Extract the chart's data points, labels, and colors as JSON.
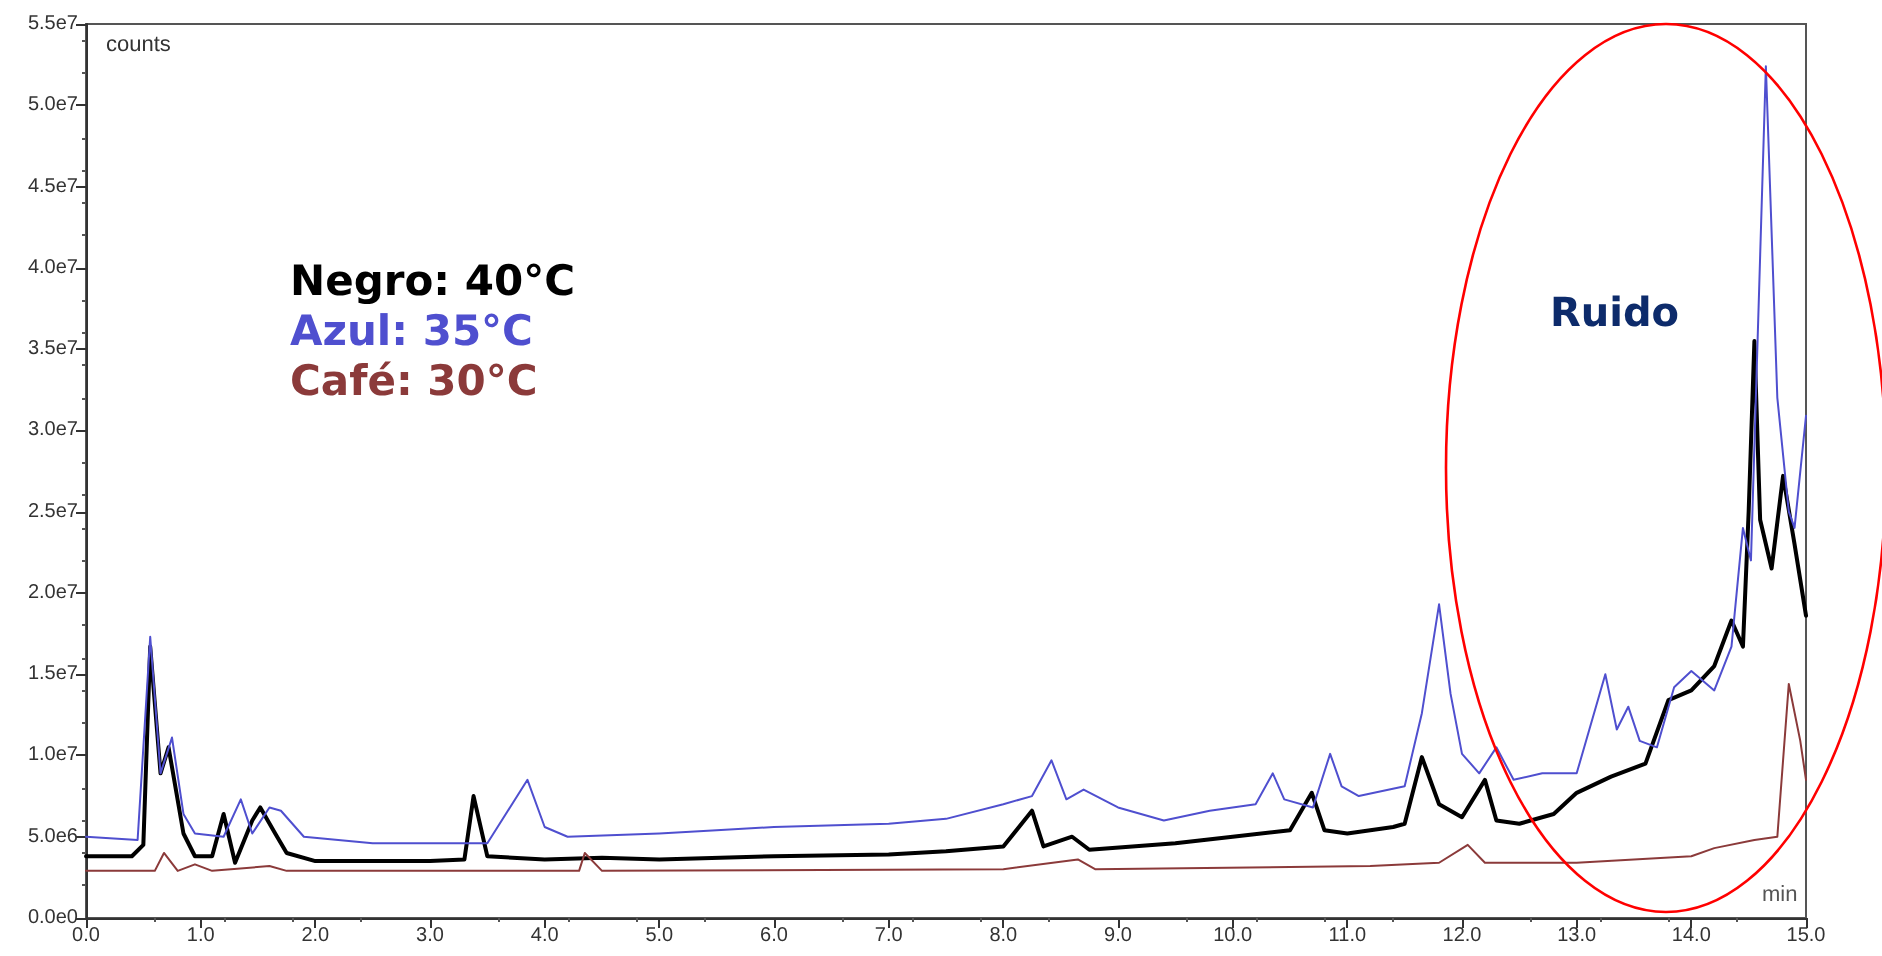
{
  "chart_data": {
    "type": "line",
    "xlabel": "min",
    "ylabel": "counts",
    "annotations": [
      "Ruido"
    ],
    "legend": "top left",
    "grid": false,
    "marker": "none",
    "line_style": "solid",
    "xlim": [
      0,
      15
    ],
    "xticks": [
      {
        "value": 0,
        "label": "0.0"
      },
      {
        "value": 1,
        "label": "1.0"
      },
      {
        "value": 2,
        "label": "2.0"
      },
      {
        "value": 3,
        "label": "3.0"
      },
      {
        "value": 4,
        "label": "4.0"
      },
      {
        "value": 5,
        "label": "5.0"
      },
      {
        "value": 6,
        "label": "6.0"
      },
      {
        "value": 7,
        "label": "7.0"
      },
      {
        "value": 8,
        "label": "8.0"
      },
      {
        "value": 9,
        "label": "9.0"
      },
      {
        "value": 10,
        "label": "10.0"
      },
      {
        "value": 11,
        "label": "11.0"
      },
      {
        "value": 12,
        "label": "12.0"
      },
      {
        "value": 13,
        "label": "13.0"
      },
      {
        "value": 14,
        "label": "14.0"
      },
      {
        "value": 15,
        "label": "15.0"
      }
    ],
    "ylim": [
      0,
      55000000
    ],
    "yticks": [
      {
        "value": 0,
        "label": "0.0e0"
      },
      {
        "value": 5000000,
        "label": "5.0e6"
      },
      {
        "value": 10000000,
        "label": "1.0e7"
      },
      {
        "value": 15000000,
        "label": "1.5e7"
      },
      {
        "value": 20000000,
        "label": "2.0e7"
      },
      {
        "value": 25000000,
        "label": "2.5e7"
      },
      {
        "value": 30000000,
        "label": "3.0e7"
      },
      {
        "value": 35000000,
        "label": "3.5e7"
      },
      {
        "value": 40000000,
        "label": "4.0e7"
      },
      {
        "value": 45000000,
        "label": "4.5e7"
      },
      {
        "value": 50000000,
        "label": "5.0e7"
      },
      {
        "value": 55000000,
        "label": "5.5e7"
      }
    ],
    "series": [
      {
        "name": "Negro: 40°C",
        "color": "#000000",
        "x": [
          0,
          0.4,
          0.5,
          0.56,
          0.65,
          0.72,
          0.85,
          0.95,
          1.1,
          1.2,
          1.3,
          1.45,
          1.52,
          1.65,
          1.75,
          2,
          3,
          3.3,
          3.38,
          3.5,
          4,
          4.5,
          5,
          6,
          7,
          7.5,
          8,
          8.25,
          8.35,
          8.6,
          8.75,
          9.5,
          10,
          10.5,
          10.69,
          10.8,
          11,
          11.4,
          11.5,
          11.65,
          11.8,
          12,
          12.2,
          12.3,
          12.5,
          12.8,
          13,
          13.3,
          13.6,
          13.8,
          14,
          14.2,
          14.35,
          14.45,
          14.5,
          14.55,
          14.6,
          14.7,
          14.8,
          14.9,
          15
        ],
        "values": [
          3800000,
          3800000,
          4500000,
          16700000,
          8900000,
          10500000,
          5200000,
          3800000,
          3800000,
          6400000,
          3400000,
          6000000,
          6800000,
          5200000,
          4000000,
          3500000,
          3500000,
          3600000,
          7500000,
          3800000,
          3600000,
          3700000,
          3600000,
          3800000,
          3900000,
          4100000,
          4400000,
          6600000,
          4400000,
          5000000,
          4200000,
          4600000,
          5000000,
          5400000,
          7700000,
          5400000,
          5200000,
          5600000,
          5800000,
          9900000,
          7000000,
          6200000,
          8500000,
          6000000,
          5800000,
          6400000,
          7700000,
          8700000,
          9500000,
          13400000,
          14000000,
          15500000,
          18300000,
          16700000,
          25000000,
          35500000,
          24500000,
          21500000,
          27200000,
          23000000,
          18600000
        ]
      },
      {
        "name": "Azul: 35°C",
        "color": "#4f4fcf",
        "x": [
          0,
          0.45,
          0.56,
          0.65,
          0.75,
          0.85,
          0.95,
          1.2,
          1.35,
          1.45,
          1.6,
          1.7,
          1.9,
          2.5,
          3,
          3.5,
          3.85,
          4,
          4.2,
          5,
          5.5,
          6,
          7,
          7.5,
          8,
          8.25,
          8.42,
          8.55,
          8.7,
          9,
          9.4,
          9.8,
          10.2,
          10.35,
          10.45,
          10.7,
          10.85,
          10.95,
          11.1,
          11.5,
          11.65,
          11.8,
          11.9,
          12,
          12.15,
          12.3,
          12.45,
          12.7,
          13,
          13.25,
          13.35,
          13.45,
          13.55,
          13.7,
          13.85,
          14,
          14.2,
          14.35,
          14.45,
          14.52,
          14.65,
          14.75,
          14.85,
          14.9,
          15
        ],
        "values": [
          5000000,
          4800000,
          17300000,
          8900000,
          11100000,
          6400000,
          5200000,
          5000000,
          7300000,
          5200000,
          6800000,
          6600000,
          5000000,
          4600000,
          4600000,
          4600000,
          8500000,
          5600000,
          5000000,
          5200000,
          5400000,
          5600000,
          5800000,
          6100000,
          7000000,
          7500000,
          9700000,
          7300000,
          7900000,
          6800000,
          6000000,
          6600000,
          7000000,
          8900000,
          7300000,
          6800000,
          10100000,
          8100000,
          7500000,
          8100000,
          12600000,
          19300000,
          13800000,
          10100000,
          8900000,
          10500000,
          8500000,
          8900000,
          8900000,
          15000000,
          11600000,
          13000000,
          10900000,
          10500000,
          14200000,
          15200000,
          14000000,
          16700000,
          24000000,
          22000000,
          52400000,
          32000000,
          25000000,
          24000000,
          30900000
        ]
      },
      {
        "name": "Café: 30°C",
        "color": "#8b3a3a",
        "x": [
          0,
          0.6,
          0.68,
          0.8,
          0.95,
          1.1,
          1.6,
          1.75,
          4.3,
          4.35,
          4.5,
          8,
          8.65,
          8.8,
          11.2,
          11.8,
          12.05,
          12.2,
          13,
          14,
          14.2,
          14.55,
          14.75,
          14.85,
          14.95,
          15
        ],
        "values": [
          2900000,
          2900000,
          4000000,
          2900000,
          3300000,
          2900000,
          3200000,
          2900000,
          2900000,
          4000000,
          2900000,
          3000000,
          3600000,
          3000000,
          3200000,
          3400000,
          4500000,
          3400000,
          3400000,
          3800000,
          4300000,
          4800000,
          5000000,
          14400000,
          10900000,
          8500000
        ]
      }
    ]
  }
}
